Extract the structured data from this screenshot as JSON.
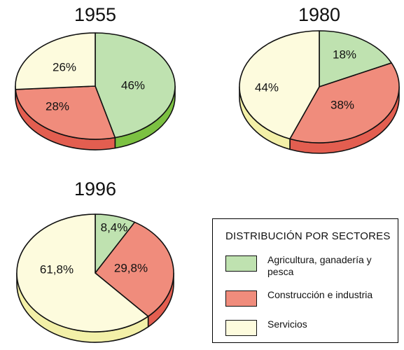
{
  "chart_data": [
    {
      "type": "pie",
      "title": "1955",
      "categories": [
        "Agricultura, ganadería y pesca",
        "Construcción e industria",
        "Servicios"
      ],
      "values": [
        46,
        28,
        26
      ],
      "labels": [
        "46%",
        "28%",
        "26%"
      ]
    },
    {
      "type": "pie",
      "title": "1980",
      "categories": [
        "Agricultura, ganadería y pesca",
        "Construcción e industria",
        "Servicios"
      ],
      "values": [
        18,
        38,
        44
      ],
      "labels": [
        "18%",
        "38%",
        "44%"
      ]
    },
    {
      "type": "pie",
      "title": "1996",
      "categories": [
        "Agricultura, ganadería y pesca",
        "Construcción e industria",
        "Servicios"
      ],
      "values": [
        8.4,
        29.8,
        61.8
      ],
      "labels": [
        "8,4%",
        "29,8%",
        "61,8%"
      ]
    }
  ],
  "legend": {
    "title": "DISTRIBUCIÓN POR SECTORES",
    "items": [
      {
        "label": "Agricultura, ganadería y pesca",
        "color": "#bfe2b0",
        "side_color": "#7cc142"
      },
      {
        "label": "Construcción e industria",
        "color": "#f08c7c",
        "side_color": "#e35e50"
      },
      {
        "label": "Servicios",
        "color": "#fdfbdd",
        "side_color": "#f3f0a8"
      }
    ]
  }
}
